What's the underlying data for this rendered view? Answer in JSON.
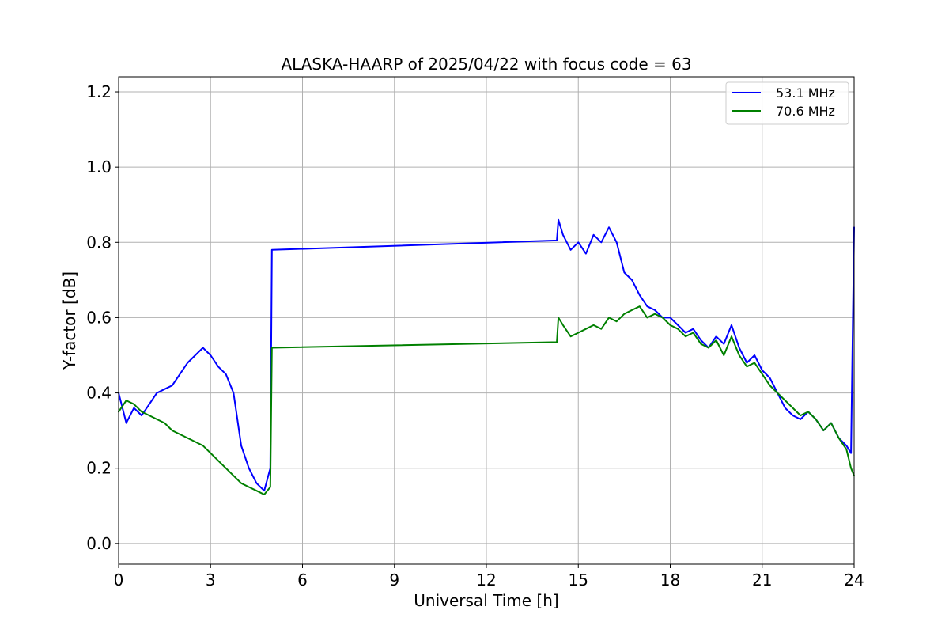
{
  "chart_data": {
    "type": "line",
    "title": "ALASKA-HAARP of 2025/04/22 with focus code = 63",
    "xlabel": "Universal Time [h]",
    "ylabel": "Y-factor [dB]",
    "xlim": [
      0,
      24
    ],
    "ylim": [
      -0.055,
      1.24
    ],
    "xticks": [
      0,
      3,
      6,
      9,
      12,
      15,
      18,
      21,
      24
    ],
    "xtick_labels": [
      "0",
      "3",
      "6",
      "9",
      "12",
      "15",
      "18",
      "21",
      "24"
    ],
    "yticks": [
      0.0,
      0.2,
      0.4,
      0.6,
      0.8,
      1.0,
      1.2
    ],
    "ytick_labels": [
      "0.0",
      "0.2",
      "0.4",
      "0.6",
      "0.8",
      "1.0",
      "1.2"
    ],
    "grid": true,
    "legend_position": "top-right",
    "series": [
      {
        "name": "53.1 MHz",
        "color": "#0000ff",
        "x": [
          0.0,
          0.25,
          0.5,
          0.75,
          1.0,
          1.25,
          1.5,
          1.75,
          2.0,
          2.25,
          2.5,
          2.75,
          3.0,
          3.25,
          3.5,
          3.75,
          4.0,
          4.25,
          4.5,
          4.75,
          4.95,
          5.0,
          14.3,
          14.35,
          14.5,
          14.75,
          15.0,
          15.25,
          15.5,
          15.75,
          16.0,
          16.25,
          16.5,
          16.75,
          17.0,
          17.25,
          17.5,
          17.75,
          18.0,
          18.25,
          18.5,
          18.75,
          19.0,
          19.25,
          19.5,
          19.75,
          20.0,
          20.25,
          20.5,
          20.75,
          21.0,
          21.25,
          21.5,
          21.75,
          22.0,
          22.25,
          22.5,
          22.75,
          23.0,
          23.25,
          23.5,
          23.75,
          23.9,
          24.0
        ],
        "y": [
          0.4,
          0.32,
          0.36,
          0.34,
          0.37,
          0.4,
          0.41,
          0.42,
          0.45,
          0.48,
          0.5,
          0.52,
          0.5,
          0.47,
          0.45,
          0.4,
          0.26,
          0.2,
          0.16,
          0.14,
          0.2,
          0.78,
          0.805,
          0.86,
          0.82,
          0.78,
          0.8,
          0.77,
          0.82,
          0.8,
          0.84,
          0.8,
          0.72,
          0.7,
          0.66,
          0.63,
          0.62,
          0.6,
          0.6,
          0.58,
          0.56,
          0.57,
          0.54,
          0.52,
          0.55,
          0.53,
          0.58,
          0.52,
          0.48,
          0.5,
          0.46,
          0.44,
          0.4,
          0.36,
          0.34,
          0.33,
          0.35,
          0.33,
          0.3,
          0.32,
          0.28,
          0.26,
          0.24,
          0.84
        ]
      },
      {
        "name": "70.6 MHz",
        "color": "#008000",
        "x": [
          0.0,
          0.25,
          0.5,
          0.75,
          1.0,
          1.25,
          1.5,
          1.75,
          2.0,
          2.25,
          2.5,
          2.75,
          3.0,
          3.25,
          3.5,
          3.75,
          4.0,
          4.25,
          4.5,
          4.75,
          4.95,
          5.0,
          14.3,
          14.35,
          14.5,
          14.75,
          15.0,
          15.25,
          15.5,
          15.75,
          16.0,
          16.25,
          16.5,
          16.75,
          17.0,
          17.25,
          17.5,
          17.75,
          18.0,
          18.25,
          18.5,
          18.75,
          19.0,
          19.25,
          19.5,
          19.75,
          20.0,
          20.25,
          20.5,
          20.75,
          21.0,
          21.25,
          21.5,
          21.75,
          22.0,
          22.25,
          22.5,
          22.75,
          23.0,
          23.25,
          23.5,
          23.75,
          23.9,
          24.0
        ],
        "y": [
          0.35,
          0.38,
          0.37,
          0.35,
          0.34,
          0.33,
          0.32,
          0.3,
          0.29,
          0.28,
          0.27,
          0.26,
          0.24,
          0.22,
          0.2,
          0.18,
          0.16,
          0.15,
          0.14,
          0.13,
          0.15,
          0.52,
          0.535,
          0.6,
          0.58,
          0.55,
          0.56,
          0.57,
          0.58,
          0.57,
          0.6,
          0.59,
          0.61,
          0.62,
          0.63,
          0.6,
          0.61,
          0.6,
          0.58,
          0.57,
          0.55,
          0.56,
          0.53,
          0.52,
          0.54,
          0.5,
          0.55,
          0.5,
          0.47,
          0.48,
          0.45,
          0.42,
          0.4,
          0.38,
          0.36,
          0.34,
          0.35,
          0.33,
          0.3,
          0.32,
          0.28,
          0.25,
          0.2,
          0.18
        ]
      }
    ]
  }
}
